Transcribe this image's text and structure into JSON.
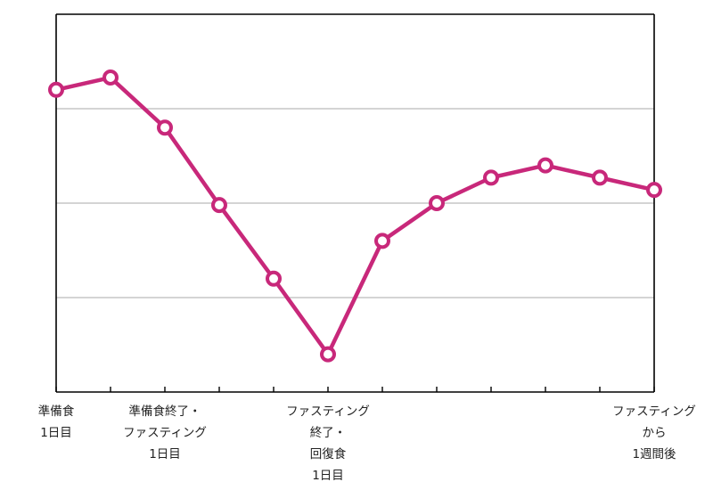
{
  "chart_data": {
    "type": "line",
    "categories": [
      "準備食\n1日目",
      "",
      "準備食終了・\nファスティング\n1日目",
      "",
      "",
      "ファスティング\n終了・\n回復食\n1日目",
      "",
      "",
      "",
      "",
      "",
      "ファスティング\nから\n1週間後"
    ],
    "series": [
      {
        "values": [
          3.2,
          3.33,
          2.8,
          1.98,
          1.2,
          0.4,
          1.6,
          2.0,
          2.27,
          2.4,
          2.27,
          2.14
        ]
      }
    ],
    "ylim": [
      0,
      4.0
    ],
    "grid": "horizontal",
    "title": "",
    "xlabel": "",
    "ylabel": "",
    "colors": {
      "line": "#c8287a",
      "grid": "#bbbbbb",
      "axis": "#000000"
    }
  }
}
